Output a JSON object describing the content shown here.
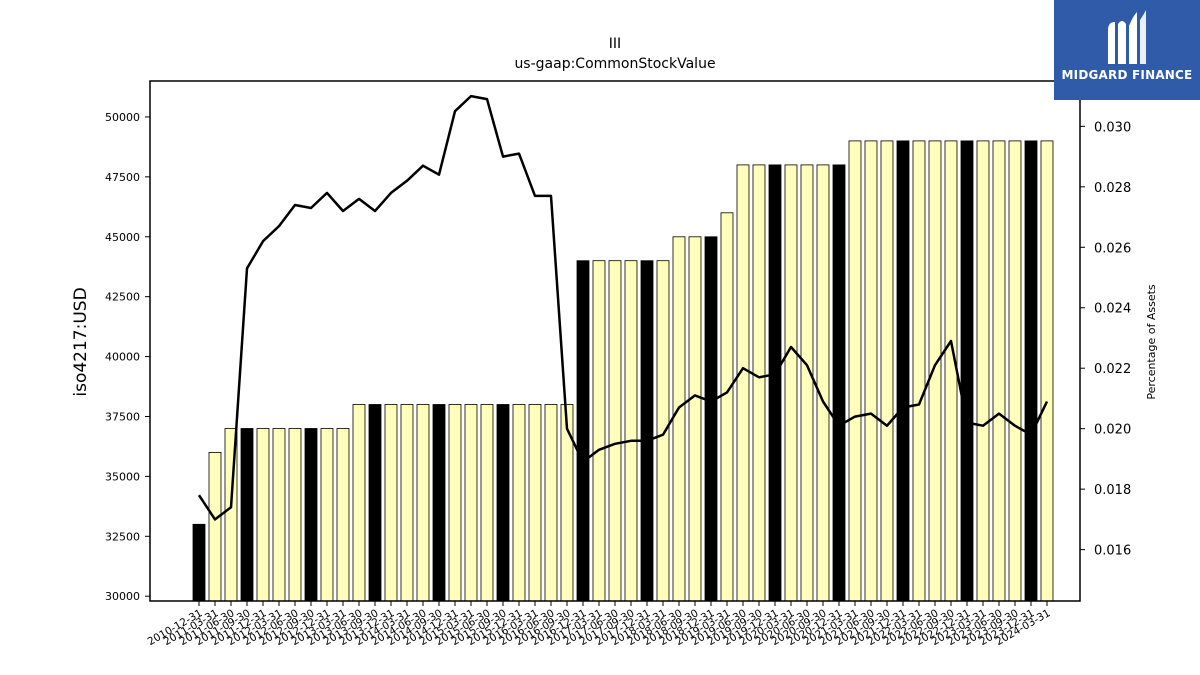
{
  "chart_data": {
    "type": "bar",
    "title": "III",
    "subtitle": "us-gaap:CommonStockValue",
    "ylabel": "iso4217:USD",
    "y2label": "Percentage of Assets",
    "ylim": [
      29800,
      51500
    ],
    "y2lim": [
      0.0143,
      0.0315
    ],
    "yticks": [
      30000,
      32500,
      35000,
      37500,
      40000,
      42500,
      45000,
      47500,
      50000
    ],
    "yticklabels": [
      "30000",
      "32500",
      "35000",
      "37500",
      "40000",
      "42500",
      "45000",
      "47500",
      "50000"
    ],
    "y2ticks": [
      0.016,
      0.018,
      0.02,
      0.022,
      0.024,
      0.026,
      0.028,
      0.03
    ],
    "y2ticklabels": [
      "0.016",
      "0.018",
      "0.020",
      "0.022",
      "0.024",
      "0.026",
      "0.028",
      "0.030"
    ],
    "grid": false,
    "categories": [
      "2010-12-31",
      "2011-03-31",
      "2011-06-30",
      "2011-09-30",
      "2011-12-31",
      "2012-03-31",
      "2012-06-30",
      "2012-09-30",
      "2012-12-31",
      "2013-03-31",
      "2013-06-30",
      "2013-09-30",
      "2013-12-31",
      "2014-03-31",
      "2014-06-30",
      "2014-09-30",
      "2014-12-31",
      "2015-03-31",
      "2015-06-30",
      "2015-09-30",
      "2015-12-31",
      "2016-03-31",
      "2016-06-30",
      "2016-09-30",
      "2016-12-31",
      "2017-03-31",
      "2017-06-30",
      "2017-09-30",
      "2017-12-31",
      "2018-03-31",
      "2018-06-30",
      "2018-09-30",
      "2018-12-31",
      "2019-03-31",
      "2019-06-30",
      "2019-09-30",
      "2019-12-31",
      "2020-03-31",
      "2020-06-30",
      "2020-09-30",
      "2020-12-31",
      "2021-03-31",
      "2021-06-30",
      "2021-09-30",
      "2021-12-31",
      "2022-03-31",
      "2022-06-30",
      "2022-09-30",
      "2022-12-31",
      "2023-03-31",
      "2023-06-30",
      "2023-09-30",
      "2023-12-31",
      "2024-03-31"
    ],
    "series": [
      {
        "type": "bar",
        "values": [
          33000,
          36000,
          37000,
          37000,
          37000,
          37000,
          37000,
          37000,
          37000,
          37000,
          38000,
          38000,
          38000,
          38000,
          38000,
          38000,
          38000,
          38000,
          38000,
          38000,
          38000,
          38000,
          38000,
          38000,
          44000,
          44000,
          44000,
          44000,
          44000,
          44000,
          45000,
          45000,
          45000,
          46000,
          48000,
          48000,
          48000,
          48000,
          48000,
          48000,
          48000,
          49000,
          49000,
          49000,
          49000,
          49000,
          49000,
          49000,
          49000,
          49000,
          49000,
          49000,
          49000,
          49000
        ],
        "highlighted": [
          true,
          false,
          false,
          true,
          false,
          false,
          false,
          true,
          false,
          false,
          false,
          true,
          false,
          false,
          false,
          true,
          false,
          false,
          false,
          true,
          false,
          false,
          false,
          false,
          true,
          false,
          false,
          false,
          true,
          false,
          false,
          false,
          true,
          false,
          false,
          false,
          true,
          false,
          false,
          false,
          true,
          false,
          false,
          false,
          true,
          false,
          false,
          false,
          true,
          false,
          false,
          false,
          true,
          false
        ]
      },
      {
        "type": "line",
        "axis": "right",
        "values": [
          0.0178,
          0.017,
          0.0174,
          0.0253,
          0.0262,
          0.0267,
          0.0274,
          0.0273,
          0.0278,
          0.0272,
          0.0276,
          0.0272,
          0.0278,
          0.0282,
          0.0287,
          0.0284,
          0.0305,
          0.031,
          0.0309,
          0.029,
          0.0291,
          0.0277,
          0.0277,
          0.02,
          0.0189,
          0.0193,
          0.0195,
          0.0196,
          0.0196,
          0.0198,
          0.0207,
          0.0211,
          0.0209,
          0.0212,
          0.022,
          0.0217,
          0.0218,
          0.0227,
          0.0221,
          0.0209,
          0.0201,
          0.0204,
          0.0205,
          0.0201,
          0.0207,
          0.0208,
          0.0221,
          0.0229,
          0.0202,
          0.0201,
          0.0205,
          0.0201,
          0.0198,
          0.0209
        ]
      }
    ],
    "colors": {
      "bar": "#ffffbb",
      "bar_highlight": "#000000",
      "line": "#000000"
    }
  },
  "logo": {
    "text": "MIDGARD FINANCE",
    "bg": "#2f5ba8"
  }
}
